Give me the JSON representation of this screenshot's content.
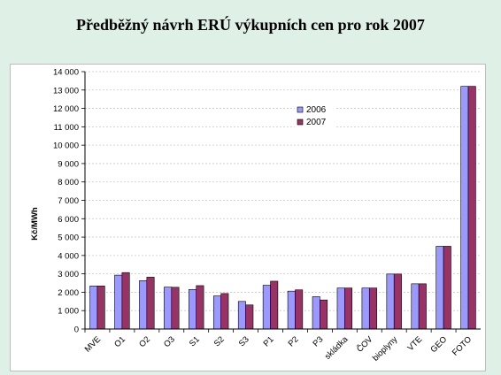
{
  "slide": {
    "title": "Předběžný návrh ERÚ výkupních cen pro rok 2007"
  },
  "chart_data": {
    "type": "bar",
    "title": "",
    "xlabel": "",
    "ylabel": "Kč/MWh",
    "ylim": [
      0,
      14000
    ],
    "ytick_step": 1000,
    "ytick_labels": [
      "0",
      "1 000",
      "2 000",
      "3 000",
      "4 000",
      "5 000",
      "6 000",
      "7 000",
      "8 000",
      "9 000",
      "10 000",
      "11 000",
      "12 000",
      "13 000",
      "14 000"
    ],
    "grid": true,
    "legend_position": "top-right",
    "categories": [
      "MVE",
      "O1",
      "O2",
      "O3",
      "S1",
      "S2",
      "S3",
      "P1",
      "P2",
      "P3",
      "skládka",
      "ČOV",
      "bioplyny",
      "VTE",
      "GEO",
      "FOTO"
    ],
    "series": [
      {
        "name": "2006",
        "color": "#9999ff",
        "values": [
          2340,
          2930,
          2630,
          2280,
          2150,
          1800,
          1500,
          2380,
          2060,
          1760,
          2230,
          2230,
          2990,
          2460,
          4500,
          13200
        ]
      },
      {
        "name": "2007",
        "color": "#993366",
        "values": [
          2340,
          3070,
          2820,
          2270,
          2360,
          1930,
          1310,
          2600,
          2130,
          1580,
          2230,
          2230,
          2990,
          2460,
          4500,
          13200
        ]
      }
    ]
  }
}
